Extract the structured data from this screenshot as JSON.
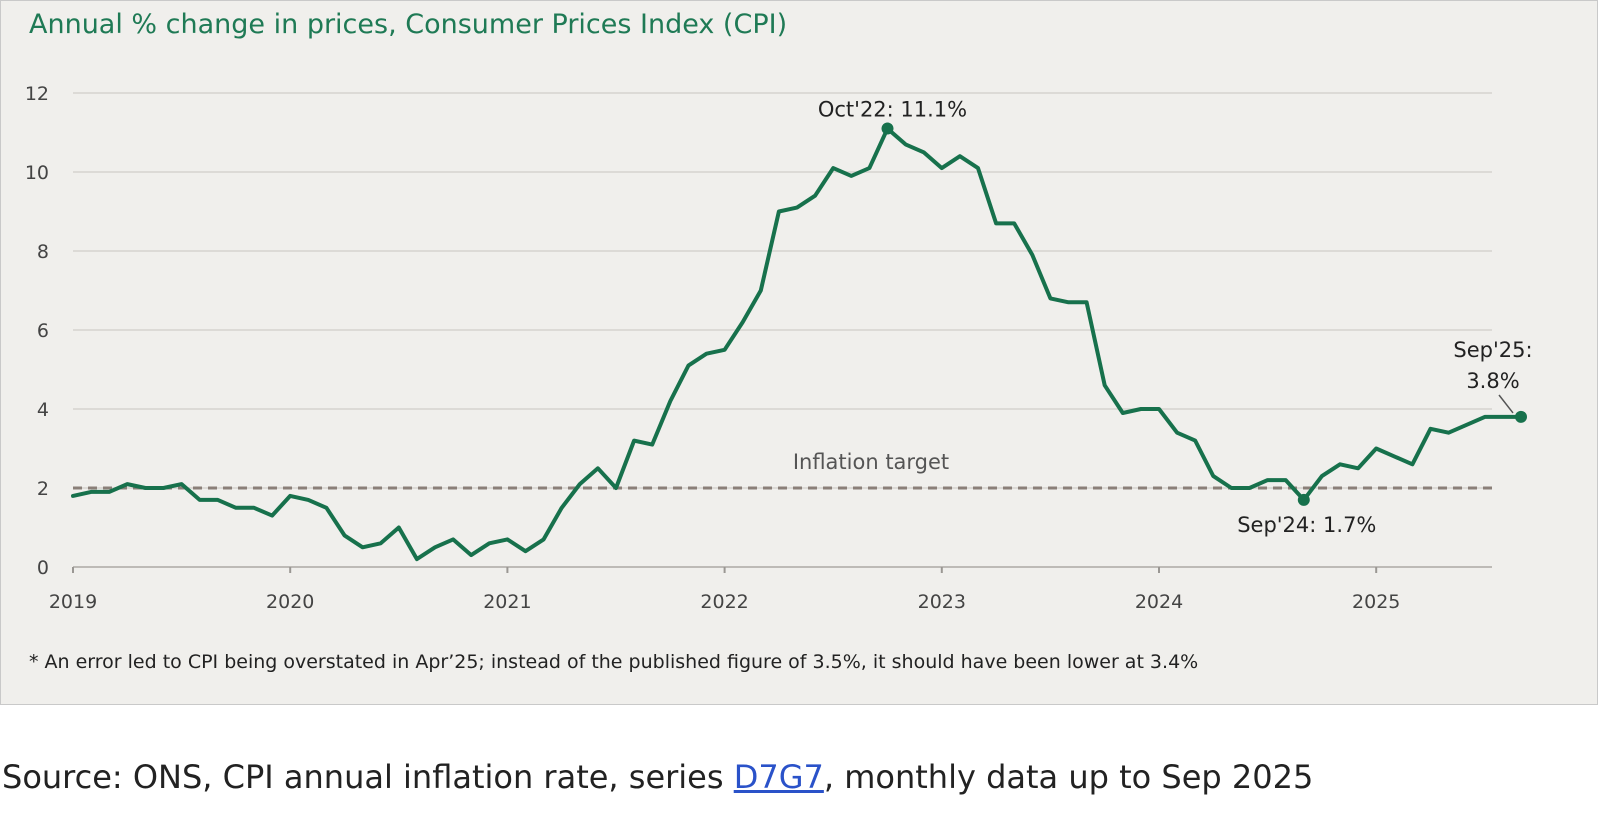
{
  "chart_data": {
    "type": "line",
    "title": "Annual % change in prices, Consumer Prices Index (CPI)",
    "xlabel": "",
    "ylabel": "",
    "ylim": [
      0,
      12
    ],
    "yticks": [
      "0",
      "2",
      "4",
      "6",
      "8",
      "10",
      "12"
    ],
    "xticks": [
      "2019",
      "2020",
      "2021",
      "2022",
      "2023",
      "2024",
      "2025"
    ],
    "grid": true,
    "series": [
      {
        "name": "CPI annual inflation rate",
        "color": "#17714c",
        "start": "Jan 2019",
        "values": [
          1.8,
          1.9,
          1.9,
          2.1,
          2.0,
          2.0,
          2.1,
          1.7,
          1.7,
          1.5,
          1.5,
          1.3,
          1.8,
          1.7,
          1.5,
          0.8,
          0.5,
          0.6,
          1.0,
          0.2,
          0.5,
          0.7,
          0.3,
          0.6,
          0.7,
          0.4,
          0.7,
          1.5,
          2.1,
          2.5,
          2.0,
          3.2,
          3.1,
          4.2,
          5.1,
          5.4,
          5.5,
          6.2,
          7.0,
          9.0,
          9.1,
          9.4,
          10.1,
          9.9,
          10.1,
          11.1,
          10.7,
          10.5,
          10.1,
          10.4,
          10.1,
          8.7,
          8.7,
          7.9,
          6.8,
          6.7,
          6.7,
          4.6,
          3.9,
          4.0,
          4.0,
          3.4,
          3.2,
          2.3,
          2.0,
          2.0,
          2.2,
          2.2,
          1.7,
          2.3,
          2.6,
          2.5,
          3.0,
          2.8,
          2.6,
          3.5,
          3.4,
          3.6,
          3.8,
          3.8,
          3.8
        ]
      }
    ],
    "reference_line": {
      "value": 2,
      "label": "Inflation target",
      "color": "#8a7f78"
    },
    "annotations": [
      {
        "index": 45,
        "label": "Oct'22:  11.1%"
      },
      {
        "index": 68,
        "label": "Sep'24:  1.7%"
      },
      {
        "index": 80,
        "label_line1": "Sep'25:",
        "label_line2": "3.8%"
      }
    ],
    "footnote": "* An error led to CPI being overstated in Apr’25; instead of the published figure of 3.5%, it should have been lower at 3.4%"
  },
  "source": {
    "prefix": "Source: ONS, CPI annual inflation rate, series ",
    "link_text": "D7G7",
    "suffix": ", monthly data up to Sep 2025"
  }
}
